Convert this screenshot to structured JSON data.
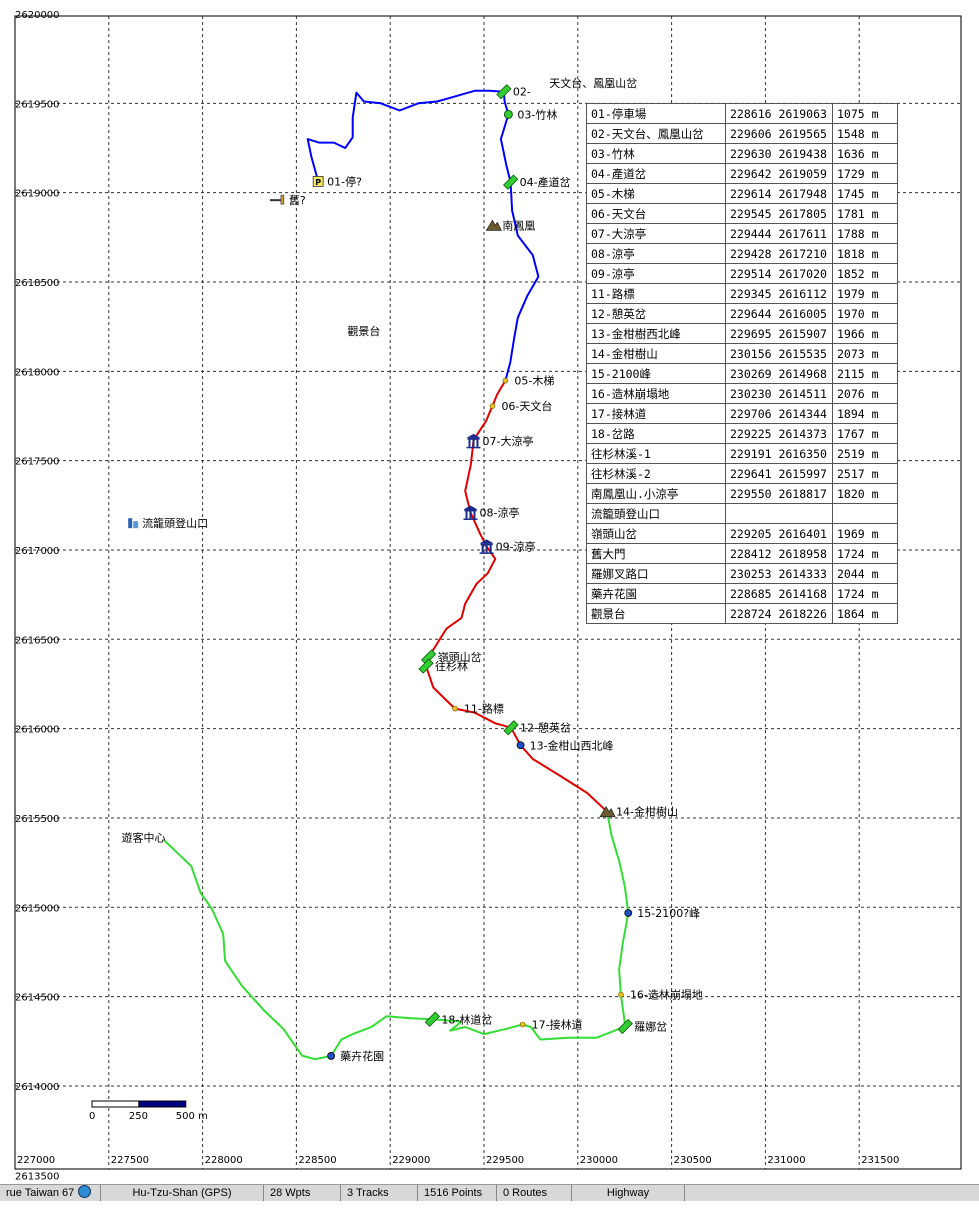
{
  "x_ticks": [
    {
      "label": "227000",
      "value": 227000
    },
    {
      "label": "227500",
      "value": 227500
    },
    {
      "label": "228000",
      "value": 228000
    },
    {
      "label": "228500",
      "value": 228500
    },
    {
      "label": "229000",
      "value": 229000
    },
    {
      "label": "229500",
      "value": 229500
    },
    {
      "label": "230000",
      "value": 230000
    },
    {
      "label": "230500",
      "value": 230500
    },
    {
      "label": "231000",
      "value": 231000
    },
    {
      "label": "231500",
      "value": 231500
    }
  ],
  "y_ticks": [
    {
      "label": "2620000",
      "value": 2620000
    },
    {
      "label": "2619500",
      "value": 2619500
    },
    {
      "label": "2619000",
      "value": 2619000
    },
    {
      "label": "2618500",
      "value": 2618500
    },
    {
      "label": "2618000",
      "value": 2618000
    },
    {
      "label": "2617500",
      "value": 2617500
    },
    {
      "label": "2617000",
      "value": 2617000
    },
    {
      "label": "2616500",
      "value": 2616500
    },
    {
      "label": "2616000",
      "value": 2616000
    },
    {
      "label": "2615500",
      "value": 2615500
    },
    {
      "label": "2615000",
      "value": 2615000
    },
    {
      "label": "2614500",
      "value": 2614500
    },
    {
      "label": "2614000",
      "value": 2614000
    },
    {
      "label": "2613500",
      "value": 2613500
    }
  ],
  "scale_bar": {
    "labels": [
      "0",
      "250",
      "500 m"
    ]
  },
  "colors": {
    "track_blue": "#0000ff",
    "track_red": "#e00000",
    "track_green": "#33dd33",
    "wpt_green": "#33cc33",
    "wpt_blue": "#1e50c8",
    "wpt_yellow": "#e8c020",
    "mountain": "#6b5a2e",
    "pavilion": "#1a2a8a"
  },
  "waypoints": [
    {
      "label": "02-",
      "icon": "green-flag-icon",
      "x": 229606,
      "y": 2619565
    },
    {
      "label": "天文台、鳳凰山岔",
      "icon": "none",
      "x": 229800,
      "y": 2619615
    },
    {
      "label": "03-竹林",
      "icon": "green-dot-icon",
      "x": 229630,
      "y": 2619438
    },
    {
      "label": "01-停?",
      "icon": "parking-icon",
      "x": 228616,
      "y": 2619063
    },
    {
      "label": "舊?",
      "icon": "gate-icon",
      "x": 228412,
      "y": 2618958
    },
    {
      "label": "04-產道岔",
      "icon": "green-flag-icon",
      "x": 229642,
      "y": 2619059
    },
    {
      "label": "南鳳凰",
      "icon": "mountain-icon",
      "x": 229550,
      "y": 2618817
    },
    {
      "label": "05-木梯",
      "icon": "yellow-dot-icon",
      "x": 229614,
      "y": 2617948
    },
    {
      "label": "06-天文台",
      "icon": "yellow-dot-icon",
      "x": 229545,
      "y": 2617805
    },
    {
      "label": "07-大涼亭",
      "icon": "pavilion-icon",
      "x": 229444,
      "y": 2617611
    },
    {
      "label": "08-涼亭",
      "icon": "pavilion-icon",
      "x": 229428,
      "y": 2617210
    },
    {
      "label": "09-涼亭",
      "icon": "pavilion-icon",
      "x": 229514,
      "y": 2617020
    },
    {
      "label": "流籠頭登山口",
      "icon": "building-icon",
      "x": 227630,
      "y": 2617150
    },
    {
      "label": "嶺頭山岔",
      "icon": "green-flag-icon",
      "x": 229205,
      "y": 2616401
    },
    {
      "label": "往杉林",
      "icon": "green-flag-icon",
      "x": 229191,
      "y": 2616350
    },
    {
      "label": "11-路標",
      "icon": "yellow-dot-icon",
      "x": 229345,
      "y": 2616112
    },
    {
      "label": "12-憩英岔",
      "icon": "green-flag-icon",
      "x": 229644,
      "y": 2616005
    },
    {
      "label": "13-金柑山西北峰",
      "icon": "blue-dot-icon",
      "x": 229695,
      "y": 2615907
    },
    {
      "label": "14-金柑樹山",
      "icon": "mountain-icon",
      "x": 230156,
      "y": 2615535
    },
    {
      "label": "遊客中心",
      "icon": "none",
      "x": 227520,
      "y": 2615390
    },
    {
      "label": "15-2100?峰",
      "icon": "blue-dot-icon",
      "x": 230269,
      "y": 2614968
    },
    {
      "label": "16-造林崩塌地",
      "icon": "yellow-dot-icon",
      "x": 230230,
      "y": 2614511
    },
    {
      "label": "羅娜岔",
      "icon": "green-flag-icon",
      "x": 230253,
      "y": 2614333
    },
    {
      "label": "17-接林道",
      "icon": "yellow-dot-icon",
      "x": 229706,
      "y": 2614344
    },
    {
      "label": "18-林道岔",
      "icon": "green-flag-icon",
      "x": 229225,
      "y": 2614373
    },
    {
      "label": "藥卉花園",
      "icon": "blue-dot-icon",
      "x": 228685,
      "y": 2614168
    },
    {
      "label": "觀景台",
      "icon": "none",
      "x": 228724,
      "y": 2618226
    }
  ],
  "tracks": [
    {
      "name": "blue",
      "color": "#0000ff",
      "points": [
        [
          228616,
          2619063
        ],
        [
          228580,
          2619200
        ],
        [
          228560,
          2619300
        ],
        [
          228620,
          2619280
        ],
        [
          228700,
          2619280
        ],
        [
          228760,
          2619250
        ],
        [
          228800,
          2619310
        ],
        [
          228800,
          2619420
        ],
        [
          228820,
          2619560
        ],
        [
          228860,
          2619510
        ],
        [
          228950,
          2619500
        ],
        [
          229050,
          2619460
        ],
        [
          229150,
          2619500
        ],
        [
          229250,
          2619510
        ],
        [
          229350,
          2619540
        ],
        [
          229450,
          2619570
        ],
        [
          229530,
          2619570
        ],
        [
          229606,
          2619565
        ],
        [
          229610,
          2619510
        ],
        [
          229630,
          2619438
        ],
        [
          229590,
          2619300
        ],
        [
          229620,
          2619150
        ],
        [
          229642,
          2619059
        ],
        [
          229650,
          2618900
        ],
        [
          229680,
          2618760
        ],
        [
          229760,
          2618650
        ],
        [
          229790,
          2618530
        ],
        [
          229730,
          2618420
        ],
        [
          229680,
          2618300
        ],
        [
          229660,
          2618180
        ],
        [
          229640,
          2618050
        ],
        [
          229614,
          2617948
        ]
      ]
    },
    {
      "name": "red",
      "color": "#e00000",
      "points": [
        [
          229614,
          2617948
        ],
        [
          229570,
          2617870
        ],
        [
          229545,
          2617805
        ],
        [
          229510,
          2617720
        ],
        [
          229460,
          2617640
        ],
        [
          229444,
          2617611
        ],
        [
          229430,
          2617480
        ],
        [
          229400,
          2617330
        ],
        [
          229428,
          2617210
        ],
        [
          229480,
          2617090
        ],
        [
          229514,
          2617020
        ],
        [
          229560,
          2616950
        ],
        [
          229520,
          2616870
        ],
        [
          229460,
          2616810
        ],
        [
          229400,
          2616700
        ],
        [
          229380,
          2616620
        ],
        [
          229300,
          2616560
        ],
        [
          229205,
          2616401
        ],
        [
          229191,
          2616350
        ],
        [
          229230,
          2616230
        ],
        [
          229345,
          2616112
        ],
        [
          229450,
          2616090
        ],
        [
          229560,
          2616030
        ],
        [
          229644,
          2616005
        ],
        [
          229695,
          2615907
        ],
        [
          229760,
          2615830
        ],
        [
          229900,
          2615740
        ],
        [
          230050,
          2615640
        ],
        [
          230156,
          2615535
        ]
      ]
    },
    {
      "name": "green",
      "color": "#33dd33",
      "points": [
        [
          230156,
          2615535
        ],
        [
          230180,
          2615400
        ],
        [
          230220,
          2615260
        ],
        [
          230250,
          2615120
        ],
        [
          230269,
          2614968
        ],
        [
          230240,
          2614800
        ],
        [
          230220,
          2614650
        ],
        [
          230230,
          2614511
        ],
        [
          230253,
          2614333
        ],
        [
          230100,
          2614270
        ],
        [
          229950,
          2614270
        ],
        [
          229800,
          2614260
        ],
        [
          229750,
          2614330
        ],
        [
          229706,
          2614344
        ],
        [
          229620,
          2614320
        ],
        [
          229500,
          2614290
        ],
        [
          229400,
          2614330
        ],
        [
          229320,
          2614310
        ],
        [
          229380,
          2614360
        ],
        [
          229225,
          2614373
        ],
        [
          229100,
          2614380
        ],
        [
          228980,
          2614390
        ],
        [
          228900,
          2614330
        ],
        [
          228800,
          2614290
        ],
        [
          228740,
          2614260
        ],
        [
          228685,
          2614168
        ],
        [
          228600,
          2614150
        ],
        [
          228530,
          2614170
        ],
        [
          228430,
          2614320
        ],
        [
          228330,
          2614420
        ],
        [
          228210,
          2614560
        ],
        [
          228120,
          2614700
        ],
        [
          228110,
          2614850
        ],
        [
          228050,
          2614990
        ],
        [
          227990,
          2615080
        ],
        [
          227940,
          2615230
        ],
        [
          227870,
          2615300
        ],
        [
          227790,
          2615380
        ]
      ]
    }
  ],
  "waypoint_table": {
    "rows": [
      [
        "01-停車場",
        "228616 2619063",
        "1075 m"
      ],
      [
        "02-天文台、鳳凰山岔",
        "229606 2619565",
        "1548 m"
      ],
      [
        "03-竹林",
        "229630 2619438",
        "1636 m"
      ],
      [
        "04-產道岔",
        "229642 2619059",
        "1729 m"
      ],
      [
        "05-木梯",
        "229614 2617948",
        "1745 m"
      ],
      [
        "06-天文台",
        "229545 2617805",
        "1781 m"
      ],
      [
        "07-大涼亭",
        "229444 2617611",
        "1788 m"
      ],
      [
        "08-涼亭",
        "229428 2617210",
        "1818 m"
      ],
      [
        "09-涼亭",
        "229514 2617020",
        "1852 m"
      ],
      [
        "11-路標",
        "229345 2616112",
        "1979 m"
      ],
      [
        "12-憩英岔",
        "229644 2616005",
        "1970 m"
      ],
      [
        "13-金柑樹西北峰",
        "229695 2615907",
        "1966 m"
      ],
      [
        "14-金柑樹山",
        "230156 2615535",
        "2073 m"
      ],
      [
        "15-2100峰",
        "230269 2614968",
        "2115 m"
      ],
      [
        "16-造林崩塌地",
        "230230 2614511",
        "2076 m"
      ],
      [
        "17-接林道",
        "229706 2614344",
        "1894 m"
      ],
      [
        "18-岔路",
        "229225 2614373",
        "1767 m"
      ],
      [
        "往杉林溪-1",
        "229191 2616350",
        "2519 m"
      ],
      [
        "往杉林溪-2",
        "229641 2615997",
        "2517 m"
      ],
      [
        "南鳳凰山.小涼亭",
        "229550 2618817",
        "1820 m"
      ],
      [
        "流籠頭登山口",
        "",
        ""
      ],
      [
        "嶺頭山岔",
        "229205 2616401",
        "1969 m"
      ],
      [
        "舊大門",
        "228412 2618958",
        "1724 m"
      ],
      [
        "羅娜叉路口",
        "230253 2614333",
        "2044 m"
      ],
      [
        "藥卉花園",
        "228685 2614168",
        "1724 m"
      ],
      [
        "觀景台",
        "228724 2618226",
        "1864 m"
      ]
    ]
  },
  "status_bar": {
    "segments": [
      "rue Taiwan 67",
      "Hu-Tzu-Shan (GPS)",
      "28 Wpts",
      "3 Tracks",
      "1516 Points",
      "0 Routes",
      "Highway"
    ]
  }
}
